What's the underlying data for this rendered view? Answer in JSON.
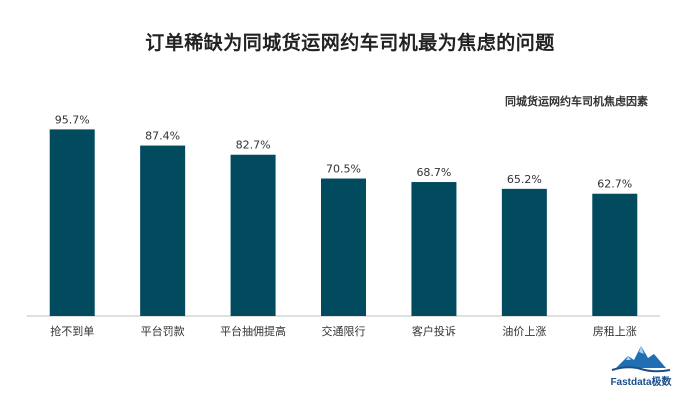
{
  "chart_data": {
    "type": "bar",
    "title": "订单稀缺为同城货运网约车司机最为焦虑的问题",
    "series": [
      {
        "name": "同城货运网约车司机焦虑因素",
        "values": [
          95.7,
          87.4,
          82.7,
          70.5,
          68.7,
          65.2,
          62.7
        ]
      }
    ],
    "categories": [
      "抢不到单",
      "平台罚款",
      "平台抽佣提高",
      "交通限行",
      "客户投诉",
      "油价上涨",
      "房租上涨"
    ],
    "value_labels": [
      "95.7%",
      "87.4%",
      "82.7%",
      "70.5%",
      "68.7%",
      "65.2%",
      "62.7%"
    ],
    "unit": "%",
    "ylim": [
      0,
      100
    ],
    "grid": false,
    "legend": "top-right",
    "bar_color": "#024a5e"
  },
  "logo": {
    "text": "Fastdata极数",
    "icon": "mountain-logo-icon",
    "color": "#1a4f8a"
  }
}
